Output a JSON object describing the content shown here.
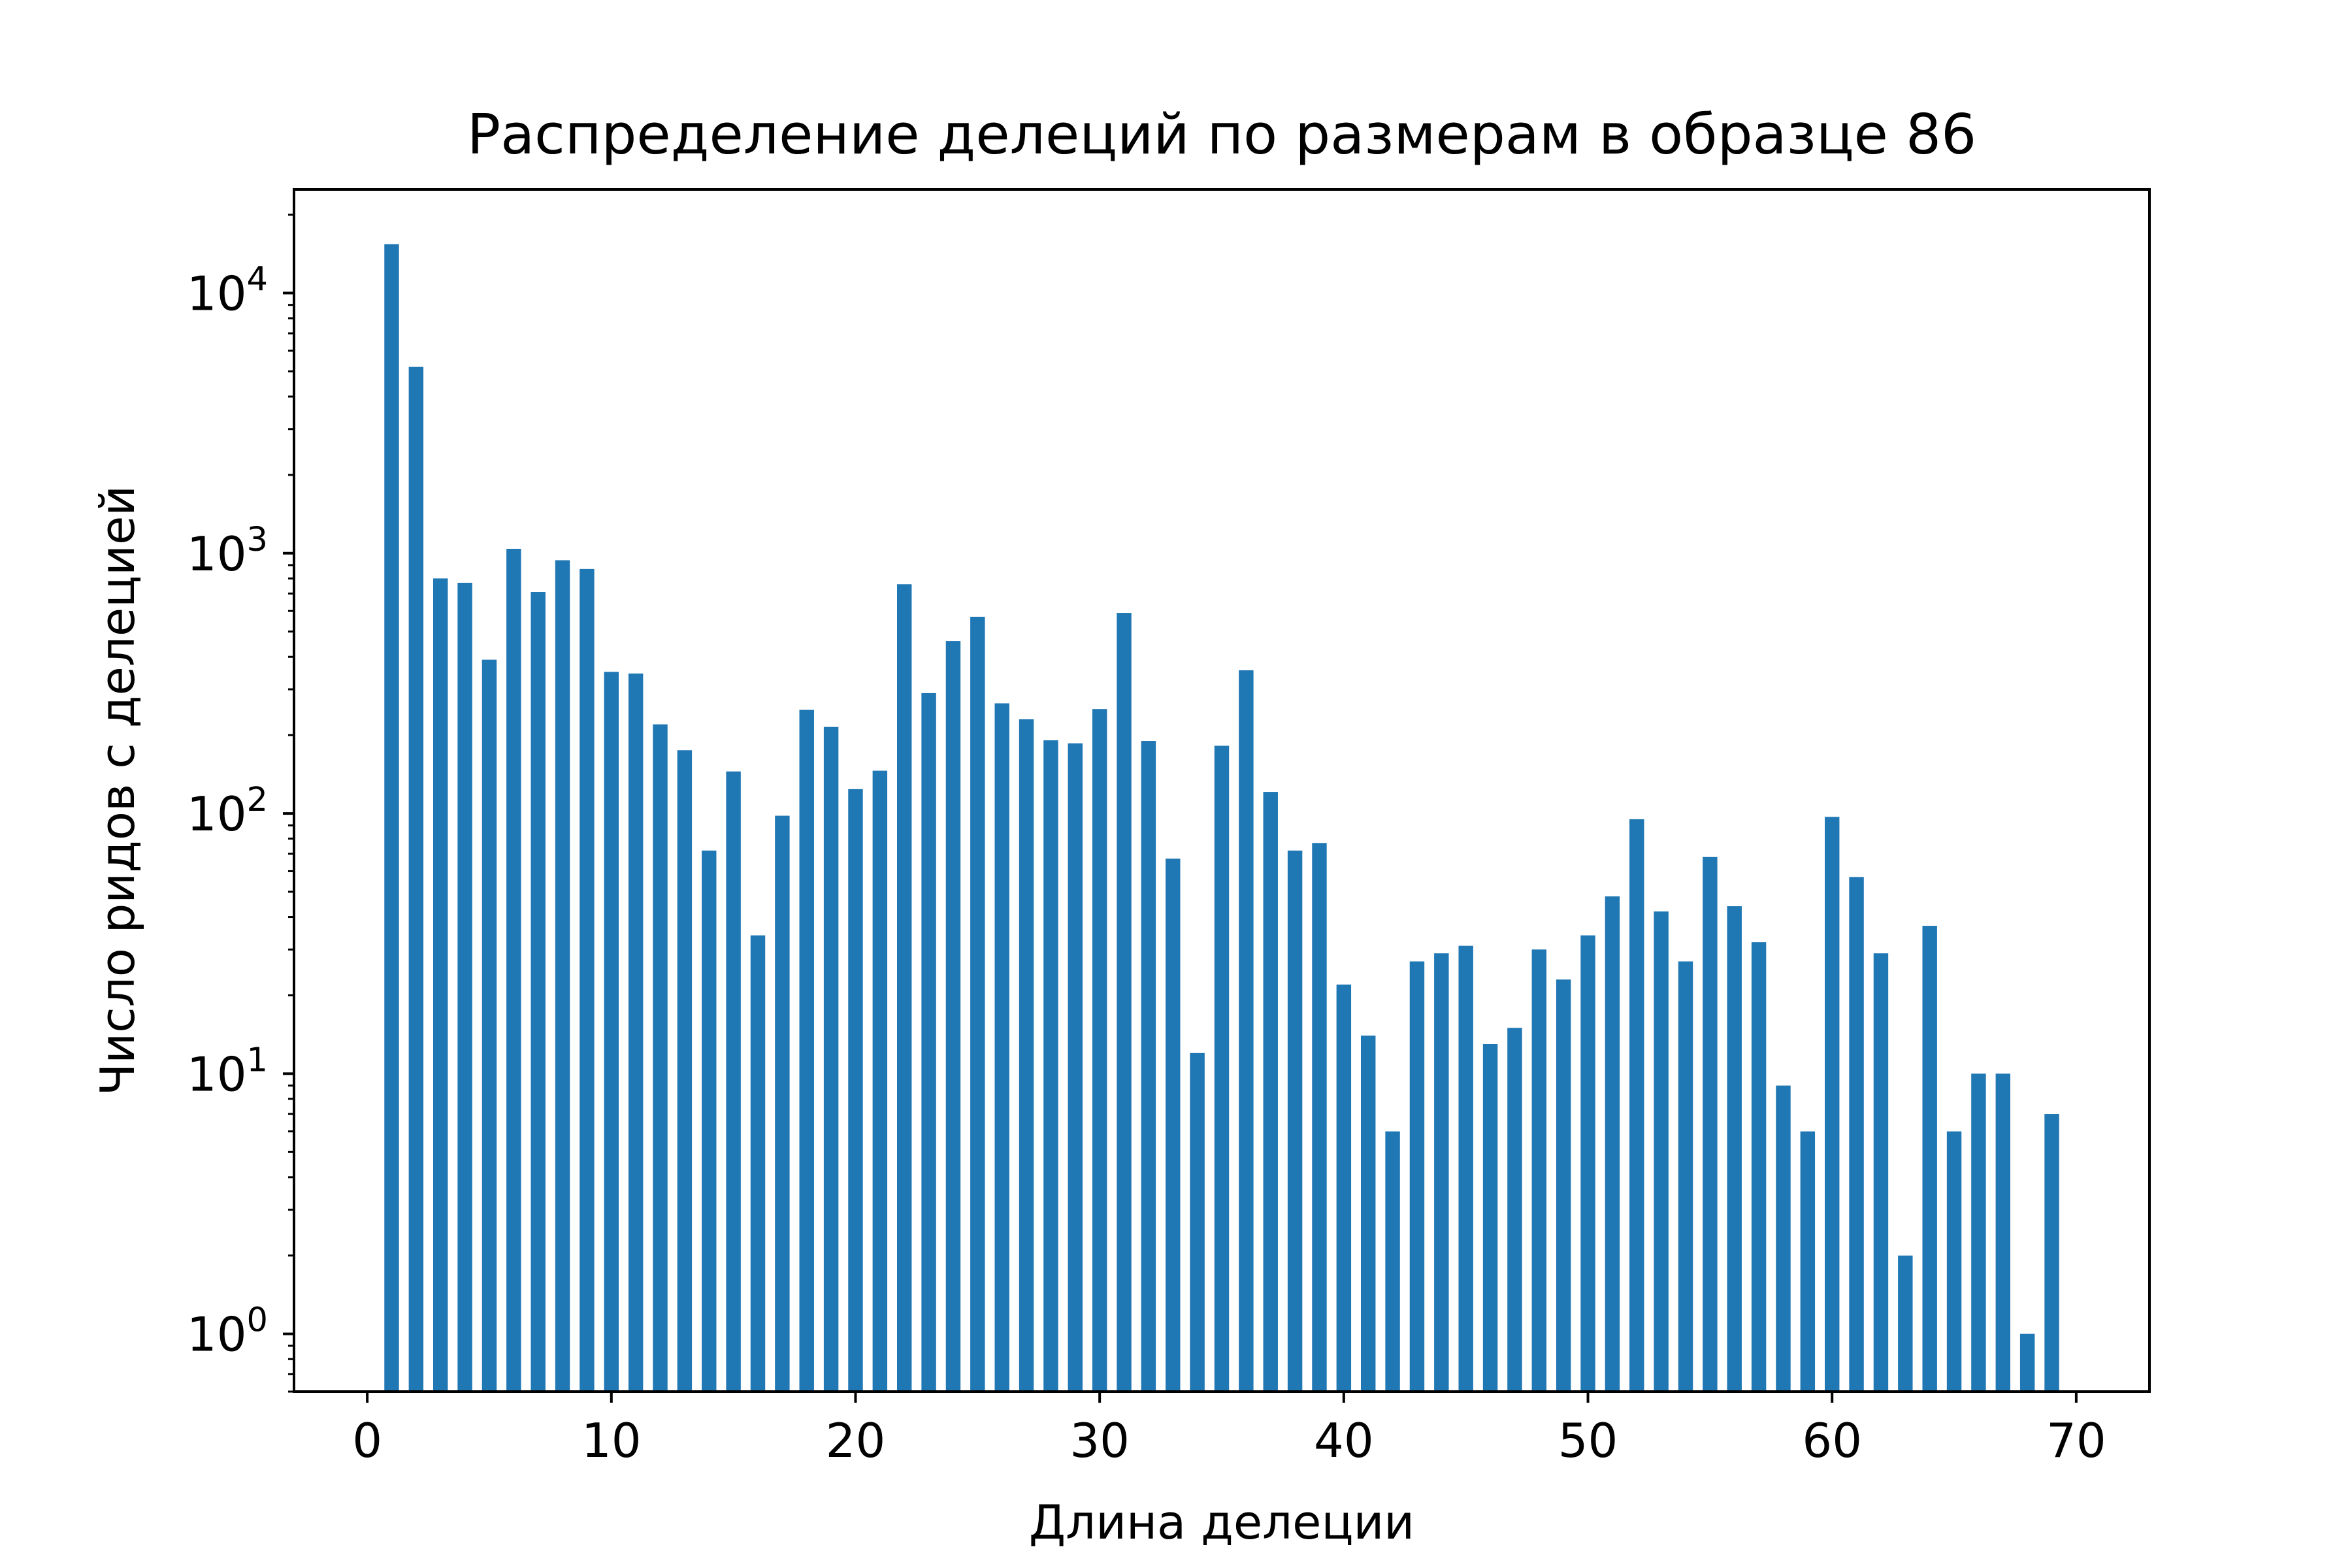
{
  "chart_data": {
    "type": "bar",
    "title": "Распределение делеций по размерам в образце 86",
    "xlabel": "Длина делеции",
    "ylabel": "Число ридов с делецией",
    "yscale": "log",
    "xlim": [
      -3,
      73
    ],
    "ylim": [
      0.6,
      25000
    ],
    "xticks": [
      0,
      10,
      20,
      30,
      40,
      50,
      60,
      70
    ],
    "xtick_labels": [
      "0",
      "10",
      "20",
      "30",
      "40",
      "50",
      "60",
      "70"
    ],
    "yticks": [
      1,
      10,
      100,
      1000,
      10000
    ],
    "ytick_labels": [
      {
        "base": "10",
        "exp": "0"
      },
      {
        "base": "10",
        "exp": "1"
      },
      {
        "base": "10",
        "exp": "2"
      },
      {
        "base": "10",
        "exp": "3"
      },
      {
        "base": "10",
        "exp": "4"
      }
    ],
    "bar_color": "#1f77b4",
    "grid": false,
    "legend": "none",
    "x": [
      1,
      2,
      3,
      4,
      5,
      6,
      7,
      8,
      9,
      10,
      11,
      12,
      13,
      14,
      15,
      16,
      17,
      18,
      19,
      20,
      21,
      22,
      23,
      24,
      25,
      26,
      27,
      28,
      29,
      30,
      31,
      32,
      33,
      34,
      35,
      36,
      37,
      38,
      39,
      40,
      41,
      42,
      43,
      44,
      45,
      46,
      47,
      48,
      49,
      50,
      51,
      52,
      53,
      54,
      55,
      56,
      57,
      58,
      59,
      60,
      61,
      62,
      63,
      64,
      65,
      66,
      67,
      68,
      69
    ],
    "values": [
      15400,
      5200,
      800,
      770,
      390,
      1040,
      710,
      940,
      870,
      350,
      345,
      220,
      175,
      72,
      145,
      34,
      98,
      250,
      215,
      124,
      146,
      760,
      290,
      460,
      570,
      265,
      230,
      191,
      186,
      252,
      590,
      190,
      67,
      12,
      182,
      355,
      121,
      72,
      77,
      22,
      14,
      6,
      27,
      29,
      31,
      13,
      15,
      30,
      23,
      34,
      48,
      95,
      42,
      27,
      68,
      44,
      32,
      9,
      6,
      97,
      57,
      29,
      2,
      37,
      6,
      10,
      10,
      1,
      7
    ]
  }
}
